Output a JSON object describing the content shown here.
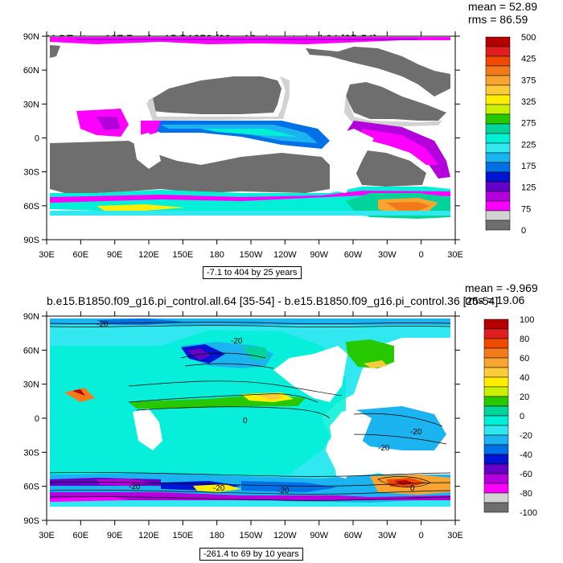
{
  "panels": [
    {
      "title": "IAGE at z= 197.7m, b.e15.B1850.f09_g16.pi_control.all.64 [35-54]",
      "mean": "mean = 52.89",
      "rms": "rms = 86.59",
      "range": "-7.1 to 404 by 25 years",
      "lat_labels": [
        "90N",
        "60N",
        "30N",
        "0",
        "30S",
        "60S",
        "90S"
      ],
      "lon_labels": [
        "30E",
        "60E",
        "90E",
        "120E",
        "150E",
        "180",
        "150W",
        "120W",
        "90W",
        "60W",
        "30W",
        "0",
        "30E"
      ],
      "colorbar": {
        "labels": [
          "500",
          "425",
          "375",
          "325",
          "275",
          "225",
          "175",
          "125",
          "75",
          "0"
        ],
        "colors": [
          "#b40000",
          "#e01e1e",
          "#f04a00",
          "#f37a1a",
          "#f8a431",
          "#fdcb3a",
          "#ffee00",
          "#c8f000",
          "#28c800",
          "#00d49a",
          "#00f0d7",
          "#32e8f0",
          "#1cb4f0",
          "#0070e6",
          "#0014d2",
          "#6400c8",
          "#b400dc",
          "#ff00ff",
          "#d2d2d2",
          "#6e6e6e"
        ]
      }
    },
    {
      "title": "b.e15.B1850.f09_g16.pi_control.all.64 [35-54] - b.e15.B1850.f09_g16.pi_control.36 [25-54]",
      "mean": "mean = -9.969",
      "rms": "rms = 19.06",
      "range": "-261.4 to 69 by 10 years",
      "lat_labels": [
        "90N",
        "60N",
        "30N",
        "0",
        "30S",
        "60S",
        "90S"
      ],
      "lon_labels": [
        "30E",
        "60E",
        "90E",
        "120E",
        "150E",
        "180",
        "150W",
        "120W",
        "90W",
        "60W",
        "30W",
        "0",
        "30E"
      ],
      "colorbar": {
        "labels": [
          "100",
          "80",
          "60",
          "40",
          "20",
          "0",
          "-20",
          "-40",
          "-60",
          "-80",
          "-100"
        ],
        "colors": [
          "#b40000",
          "#e01e1e",
          "#f04a00",
          "#f37a1a",
          "#f8a431",
          "#fdcb3a",
          "#ffee00",
          "#c8f000",
          "#28c800",
          "#00d49a",
          "#00f0d7",
          "#32e8f0",
          "#1cb4f0",
          "#0070e6",
          "#0014d2",
          "#6400c8",
          "#b400dc",
          "#ff00ff",
          "#d2d2d2",
          "#6e6e6e"
        ]
      },
      "contour_labels": [
        "-20",
        "-20",
        "-20",
        "0",
        "0",
        "-20",
        "-20",
        "-20",
        "-20"
      ]
    }
  ]
}
